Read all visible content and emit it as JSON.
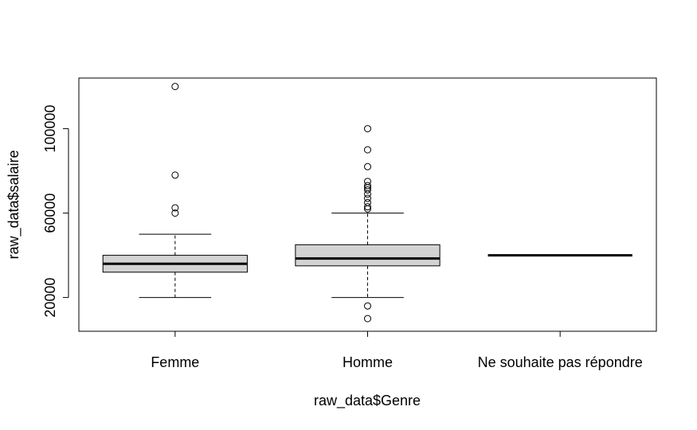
{
  "chart_data": {
    "type": "boxplot",
    "title": "",
    "xlabel": "raw_data$Genre",
    "ylabel": "raw_data$salaire",
    "ylim": [
      4000,
      124000
    ],
    "yticks": [
      20000,
      60000,
      100000
    ],
    "y_tick_labels": [
      "20000",
      "60000",
      "100000"
    ],
    "grid": false,
    "colors": {
      "box_fill": "#d3d3d3",
      "stroke": "#000000",
      "background": "#ffffff"
    },
    "categories": [
      "Femme",
      "Homme",
      "Ne souhaite pas répondre"
    ],
    "groups": [
      {
        "category": "Femme",
        "whisker_low": 20000,
        "q1": 32000,
        "median": 36000,
        "q3": 40000,
        "whisker_high": 50000,
        "outliers": [
          60000,
          62500,
          78000,
          120000
        ]
      },
      {
        "category": "Homme",
        "whisker_low": 20000,
        "q1": 35000,
        "median": 38500,
        "q3": 45000,
        "whisker_high": 60000,
        "outliers": [
          10000,
          16000,
          62000,
          63000,
          65000,
          67000,
          69000,
          71000,
          72000,
          73000,
          75000,
          82000,
          90000,
          100000
        ]
      },
      {
        "category": "Ne souhaite pas répondre",
        "whisker_low": 40000,
        "q1": 40000,
        "median": 40000,
        "q3": 40000,
        "whisker_high": 40000,
        "outliers": []
      }
    ]
  }
}
